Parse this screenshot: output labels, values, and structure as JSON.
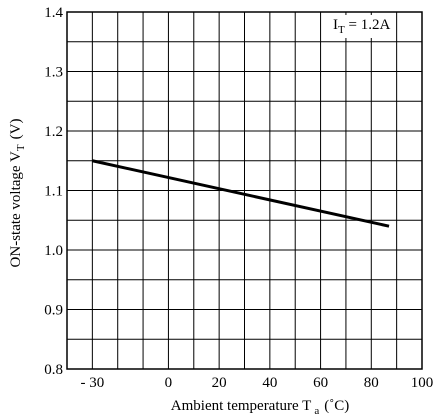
{
  "chart_data": {
    "type": "line",
    "title": "",
    "xlabel": {
      "main": "Ambient temperature T",
      "sub": "a",
      "unit": "(˚C)"
    },
    "ylabel": {
      "main": "ON-state voltage V",
      "sub": "T",
      "unit": "(V)"
    },
    "xlim": [
      -40,
      100
    ],
    "ylim": [
      0.8,
      1.4
    ],
    "x_ticks": [
      -30,
      0,
      20,
      40,
      60,
      80,
      100
    ],
    "x_tick_labels": [
      "- 30",
      "0",
      "20",
      "40",
      "60",
      "80",
      "100"
    ],
    "y_ticks": [
      0.8,
      0.9,
      1.0,
      1.1,
      1.2,
      1.3,
      1.4
    ],
    "y_tick_labels": [
      "0.8",
      "0.9",
      "1.0",
      "1.1",
      "1.2",
      "1.3",
      "1.4"
    ],
    "grid": true,
    "grid_x_step": 10,
    "grid_y_step": 0.05,
    "series": [
      {
        "x": [
          -30,
          87
        ],
        "y": [
          1.15,
          1.04
        ]
      }
    ],
    "annotation": {
      "main": "I",
      "sub": "T",
      "rest": " = 1.2A",
      "position": "top-right"
    }
  }
}
